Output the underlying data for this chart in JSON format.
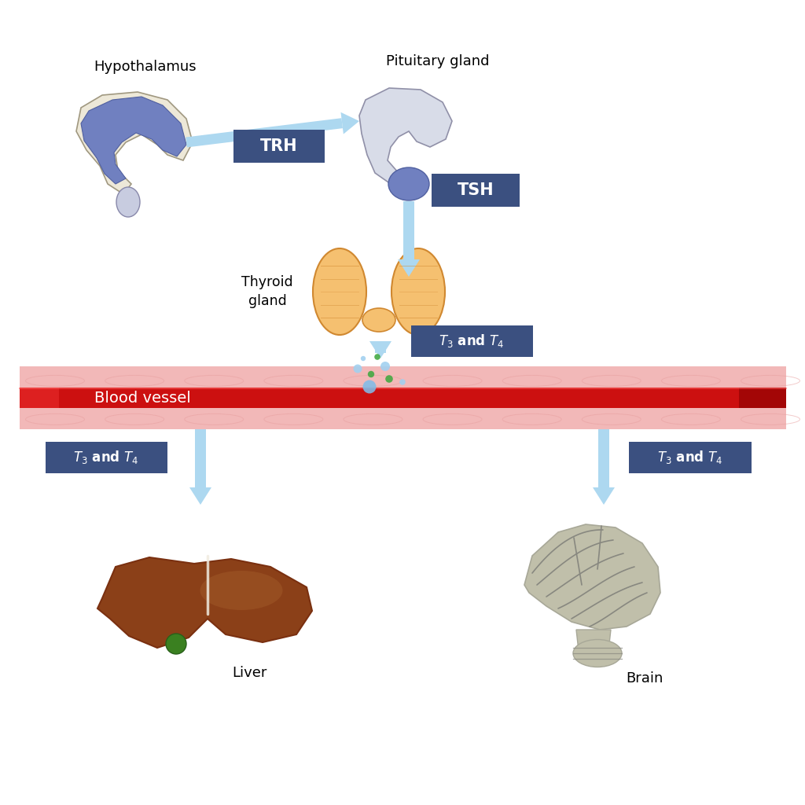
{
  "bg_color": "#ffffff",
  "labels": {
    "hypothalamus": "Hypothalamus",
    "pituitary": "Pituitary gland",
    "thyroid_line1": "Thyroid",
    "thyroid_line2": "gland",
    "blood_vessel": "Blood vessel",
    "liver": "Liver",
    "brain": "Brain",
    "trh": "TRH",
    "tsh": "TSH",
    "t3t4": "T₃ and T₄"
  },
  "colors": {
    "arrow": "#add8f0",
    "label_box": "#3b5080",
    "label_text": "#ffffff",
    "blood_outer": "#f2b8b8",
    "blood_inner_left": "#dd2020",
    "blood_inner_right": "#aa0000",
    "blood_inner_mid": "#cc1010",
    "hypo_cream": "#ede8d8",
    "hypo_blue": "#7080c0",
    "hypo_ltblue": "#8898cc",
    "hypo_grey": "#c8cce0",
    "pit_grey": "#c0c4d8",
    "pit_ltgrey": "#d8dce8",
    "pit_blue": "#7080c0",
    "thyroid_lt": "#f5c070",
    "thyroid_dk": "#e8a040",
    "thyroid_line": "#d08830",
    "liver_dk": "#7a3010",
    "liver_md": "#8b4018",
    "liver_lt": "#a05828",
    "liver_green": "#3a8020",
    "brain_base": "#c0bfaa",
    "brain_lt": "#d8d7c2",
    "brain_dk": "#a8a898",
    "brain_fold": "#888880",
    "bubble_blue": "#80bce8",
    "bubble_blue2": "#a0d0f0",
    "bubble_green": "#40a840"
  }
}
